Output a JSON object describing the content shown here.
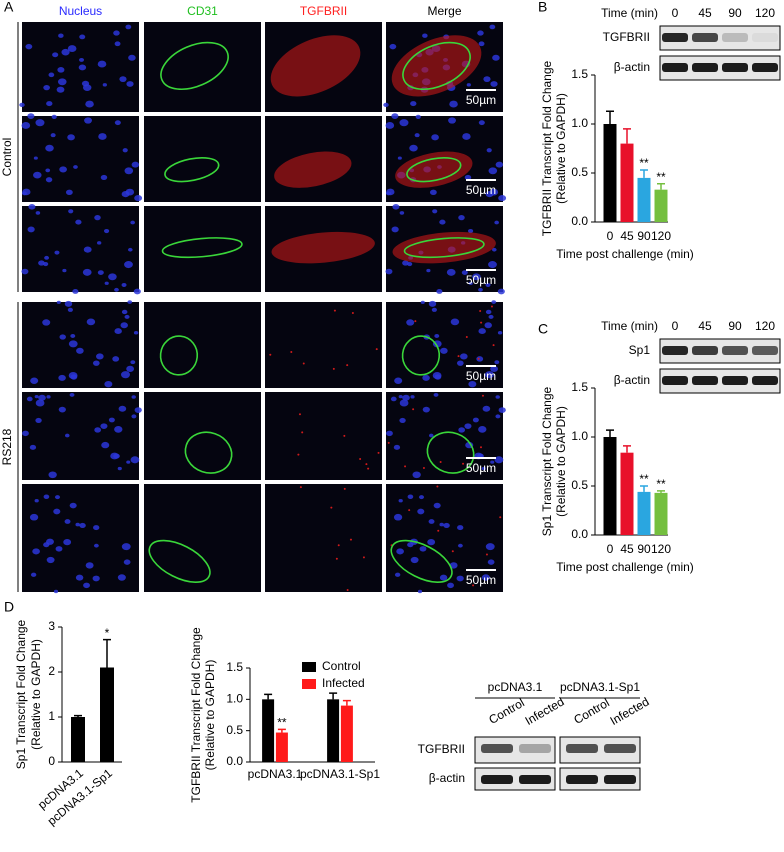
{
  "panels": {
    "a": "A",
    "b": "B",
    "c": "C",
    "d": "D"
  },
  "micrographs": {
    "channels": [
      {
        "name": "Nucleus",
        "color": "#2a2aff"
      },
      {
        "name": "CD31",
        "color": "#1fbf1f"
      },
      {
        "name": "TGFBRII",
        "color": "#ff2020"
      },
      {
        "name": "Merge",
        "color": "#000000"
      }
    ],
    "groups": [
      "Control",
      "RS218"
    ],
    "scale_bar": "50µm"
  },
  "blots": [
    {
      "header": "Time (min)",
      "lanes": [
        "0",
        "45",
        "90",
        "120"
      ],
      "rows": [
        "TGFBRII",
        "β-actin"
      ]
    },
    {
      "header": "Time (min)",
      "lanes": [
        "0",
        "45",
        "90",
        "120"
      ],
      "rows": [
        "Sp1",
        "β-actin"
      ]
    },
    {
      "groups": [
        "pcDNA3.1",
        "pcDNA3.1-Sp1"
      ],
      "lanes": [
        "Control",
        "Infected"
      ],
      "rows": [
        "TGFBRII",
        "β-actin"
      ]
    }
  ],
  "chart_data": [
    {
      "type": "bar",
      "ylabel": [
        "TGFBRII Transcript Fold Change",
        "(Relative to GAPDH)"
      ],
      "xlabel": "Time post challenge (min)",
      "categories": [
        "0",
        "45",
        "90",
        "120"
      ],
      "values": [
        1.0,
        0.8,
        0.45,
        0.33
      ],
      "errors": [
        0.13,
        0.15,
        0.08,
        0.06
      ],
      "significance": [
        null,
        null,
        "**",
        "**"
      ],
      "colors": [
        "#000000",
        "#e8102a",
        "#2aa6e0",
        "#74bf3f"
      ],
      "ylim": [
        0,
        1.5
      ],
      "yticks": [
        {
          "value": 0,
          "label": "0.0"
        },
        {
          "value": 0.5,
          "label": "0.5"
        },
        {
          "value": 1,
          "label": "1.0"
        },
        {
          "value": 1.5,
          "label": "1.5"
        }
      ]
    },
    {
      "type": "bar",
      "ylabel": [
        "Sp1 Transcript Fold Change",
        "(Relative to GAPDH)"
      ],
      "xlabel": "Time post challenge (min)",
      "categories": [
        "0",
        "45",
        "90",
        "120"
      ],
      "values": [
        1.0,
        0.84,
        0.44,
        0.43
      ],
      "errors": [
        0.07,
        0.07,
        0.06,
        0.02
      ],
      "significance": [
        null,
        null,
        "**",
        "**"
      ],
      "colors": [
        "#000000",
        "#e8102a",
        "#2aa6e0",
        "#74bf3f"
      ],
      "ylim": [
        0,
        1.5
      ],
      "yticks": [
        {
          "value": 0,
          "label": "0.0"
        },
        {
          "value": 0.5,
          "label": "0.5"
        },
        {
          "value": 1,
          "label": "1.0"
        },
        {
          "value": 1.5,
          "label": "1.5"
        }
      ]
    },
    {
      "type": "bar",
      "ylabel": [
        "Sp1 Transcript Fold Change",
        "(Relative to GAPDH)"
      ],
      "categories": [
        "pcDNA3.1",
        "pcDNA3.1-Sp1"
      ],
      "values": [
        1.0,
        2.1
      ],
      "errors": [
        0.03,
        0.62
      ],
      "significance": [
        null,
        "*"
      ],
      "color": "#000000",
      "ylim": [
        0,
        3
      ],
      "yticks": [
        0,
        1,
        2,
        3
      ]
    },
    {
      "type": "bar",
      "ylabel": [
        "TGFBRII Transcript Fold Change",
        "(Relative to GAPDH)"
      ],
      "categories": [
        "pcDNA3.1",
        "pcDNA3.1-Sp1"
      ],
      "series": [
        {
          "name": "Control",
          "color": "#000000",
          "values": [
            1.0,
            1.0
          ],
          "errors": [
            0.08,
            0.1
          ],
          "significance": [
            null,
            null
          ]
        },
        {
          "name": "Infected",
          "color": "#ff1a1a",
          "values": [
            0.47,
            0.9
          ],
          "errors": [
            0.05,
            0.08
          ],
          "significance": [
            "**",
            null
          ]
        }
      ],
      "ylim": [
        0,
        1.5
      ],
      "yticks": [
        {
          "value": 0,
          "label": "0.0"
        },
        {
          "value": 0.5,
          "label": "0.5"
        },
        {
          "value": 1,
          "label": "1.0"
        },
        {
          "value": 1.5,
          "label": "1.5"
        }
      ]
    }
  ]
}
